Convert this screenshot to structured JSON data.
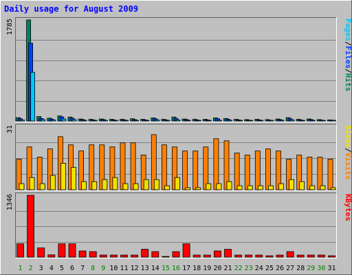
{
  "chart_data": [
    {
      "type": "bar",
      "title": "Daily usage for August 2009",
      "ymax_label": "1785",
      "ylim": [
        0,
        1785
      ],
      "legend": [
        {
          "text": "Pages",
          "color": "#00c8f8"
        },
        {
          "text": "/",
          "color": "#000000"
        },
        {
          "text": "Files",
          "color": "#0040ff"
        },
        {
          "text": "/",
          "color": "#000000"
        },
        {
          "text": "Hits",
          "color": "#008060"
        }
      ],
      "categories": [
        "1",
        "2",
        "3",
        "4",
        "5",
        "6",
        "7",
        "8",
        "9",
        "10",
        "11",
        "12",
        "13",
        "14",
        "15",
        "16",
        "17",
        "18",
        "19",
        "20",
        "21",
        "22",
        "23",
        "24",
        "25",
        "26",
        "27",
        "28",
        "29",
        "30",
        "31"
      ],
      "series": [
        {
          "name": "Hits",
          "color": "#008060",
          "values": [
            60,
            1785,
            80,
            50,
            90,
            70,
            35,
            30,
            35,
            30,
            30,
            40,
            30,
            55,
            30,
            70,
            35,
            30,
            30,
            55,
            45,
            30,
            25,
            30,
            25,
            35,
            60,
            30,
            35,
            25,
            20
          ]
        },
        {
          "name": "Files",
          "color": "#0040ff",
          "values": [
            40,
            1375,
            45,
            35,
            70,
            50,
            25,
            20,
            25,
            20,
            20,
            25,
            20,
            40,
            20,
            45,
            25,
            20,
            20,
            40,
            30,
            20,
            15,
            20,
            15,
            25,
            40,
            20,
            25,
            15,
            15
          ]
        },
        {
          "name": "Pages",
          "color": "#00c8f8",
          "values": [
            20,
            860,
            25,
            20,
            35,
            25,
            10,
            10,
            10,
            10,
            10,
            10,
            10,
            20,
            10,
            20,
            10,
            10,
            10,
            15,
            15,
            10,
            8,
            10,
            8,
            10,
            20,
            10,
            10,
            8,
            8
          ]
        }
      ]
    },
    {
      "type": "bar",
      "ymax_label": "31",
      "ylim": [
        0,
        31
      ],
      "legend": [
        {
          "text": "Sites",
          "color": "#f0e000"
        },
        {
          "text": "/",
          "color": "#000000"
        },
        {
          "text": "Visits",
          "color": "#ff8000"
        }
      ],
      "categories": [
        "1",
        "2",
        "3",
        "4",
        "5",
        "6",
        "7",
        "8",
        "9",
        "10",
        "11",
        "12",
        "13",
        "14",
        "15",
        "16",
        "17",
        "18",
        "19",
        "20",
        "21",
        "22",
        "23",
        "24",
        "25",
        "26",
        "27",
        "28",
        "29",
        "30",
        "31"
      ],
      "series": [
        {
          "name": "Visits",
          "color": "#ff8000",
          "values": [
            15,
            21,
            16,
            20,
            26,
            22,
            19,
            22,
            22,
            21,
            23,
            23,
            17,
            27,
            22,
            21,
            19,
            19,
            21,
            25,
            24,
            18,
            17,
            19,
            20,
            19,
            15,
            17,
            16,
            16,
            15
          ]
        },
        {
          "name": "Sites",
          "color": "#f0e000",
          "values": [
            3,
            6,
            3,
            7,
            13,
            11,
            4,
            4,
            5,
            6,
            3,
            3,
            5,
            5,
            2,
            6,
            1,
            1,
            3,
            3,
            4,
            2,
            2,
            2,
            2,
            3,
            5,
            4,
            2,
            2,
            1
          ]
        }
      ]
    },
    {
      "type": "bar",
      "ymax_label": "1346",
      "ylim": [
        0,
        1346
      ],
      "legend": [
        {
          "text": "KBytes",
          "color": "#ff0000"
        }
      ],
      "categories": [
        "1",
        "2",
        "3",
        "4",
        "5",
        "6",
        "7",
        "8",
        "9",
        "10",
        "11",
        "12",
        "13",
        "14",
        "15",
        "16",
        "17",
        "18",
        "19",
        "20",
        "21",
        "22",
        "23",
        "24",
        "25",
        "26",
        "27",
        "28",
        "29",
        "30",
        "31"
      ],
      "series": [
        {
          "name": "KBytes",
          "color": "#ff0000",
          "values": [
            290,
            1346,
            200,
            50,
            290,
            290,
            135,
            120,
            45,
            45,
            45,
            45,
            170,
            120,
            15,
            120,
            290,
            45,
            45,
            135,
            170,
            45,
            45,
            45,
            30,
            45,
            120,
            45,
            45,
            45,
            30
          ]
        }
      ]
    }
  ],
  "x_axis": {
    "days": [
      {
        "label": "1",
        "color": "#008000"
      },
      {
        "label": "2",
        "color": "#008000"
      },
      {
        "label": "3",
        "color": "#000000"
      },
      {
        "label": "4",
        "color": "#000000"
      },
      {
        "label": "5",
        "color": "#000000"
      },
      {
        "label": "6",
        "color": "#000000"
      },
      {
        "label": "7",
        "color": "#000000"
      },
      {
        "label": "8",
        "color": "#008000"
      },
      {
        "label": "9",
        "color": "#008000"
      },
      {
        "label": "10",
        "color": "#000000"
      },
      {
        "label": "11",
        "color": "#000000"
      },
      {
        "label": "12",
        "color": "#000000"
      },
      {
        "label": "13",
        "color": "#000000"
      },
      {
        "label": "14",
        "color": "#000000"
      },
      {
        "label": "15",
        "color": "#008000"
      },
      {
        "label": "16",
        "color": "#008000"
      },
      {
        "label": "17",
        "color": "#000000"
      },
      {
        "label": "18",
        "color": "#000000"
      },
      {
        "label": "19",
        "color": "#000000"
      },
      {
        "label": "20",
        "color": "#000000"
      },
      {
        "label": "21",
        "color": "#000000"
      },
      {
        "label": "22",
        "color": "#008000"
      },
      {
        "label": "23",
        "color": "#008000"
      },
      {
        "label": "24",
        "color": "#000000"
      },
      {
        "label": "25",
        "color": "#000000"
      },
      {
        "label": "26",
        "color": "#000000"
      },
      {
        "label": "27",
        "color": "#000000"
      },
      {
        "label": "28",
        "color": "#000000"
      },
      {
        "label": "29",
        "color": "#008000"
      },
      {
        "label": "30",
        "color": "#008000"
      },
      {
        "label": "31",
        "color": "#000000"
      }
    ]
  },
  "colors": {
    "background": "#c0c0c0",
    "plot": "#c0c0c0",
    "title": "#0000ff",
    "grid": "#808080"
  }
}
